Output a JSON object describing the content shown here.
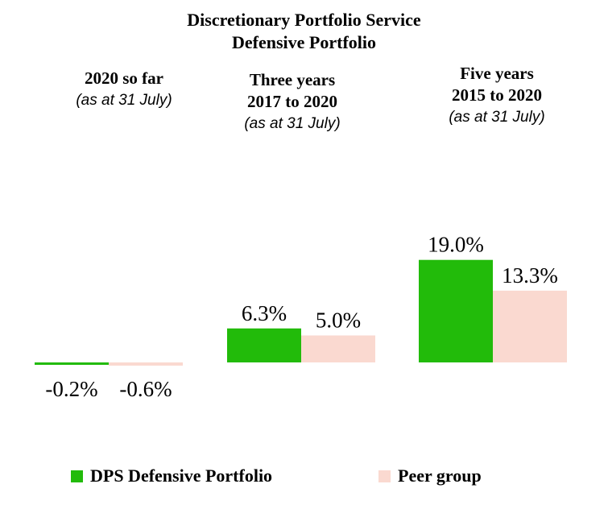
{
  "chart_data": {
    "type": "bar",
    "title": "Discretionary Portfolio Service",
    "subtitle": "Defensive Portfolio",
    "groups": [
      {
        "line1": "2020 so far",
        "line2": "",
        "line3": "(as at 31 July)"
      },
      {
        "line1": "Three years",
        "line2": "2017 to 2020",
        "line3": "(as at 31 July)"
      },
      {
        "line1": "Five years",
        "line2": "2015 to 2020",
        "line3": "(as at 31 July)"
      }
    ],
    "series": [
      {
        "name": "DPS Defensive Portfolio",
        "color": "#22bb0a",
        "values": [
          -0.2,
          6.3,
          19.0
        ],
        "labels": [
          "-0.2%",
          "6.3%",
          "19.0%"
        ]
      },
      {
        "name": "Peer group",
        "color": "#fad9d0",
        "values": [
          -0.6,
          5.0,
          13.3
        ],
        "labels": [
          "-0.6%",
          "5.0%",
          "13.3%"
        ]
      }
    ],
    "grid": false,
    "legend_position": "bottom"
  }
}
